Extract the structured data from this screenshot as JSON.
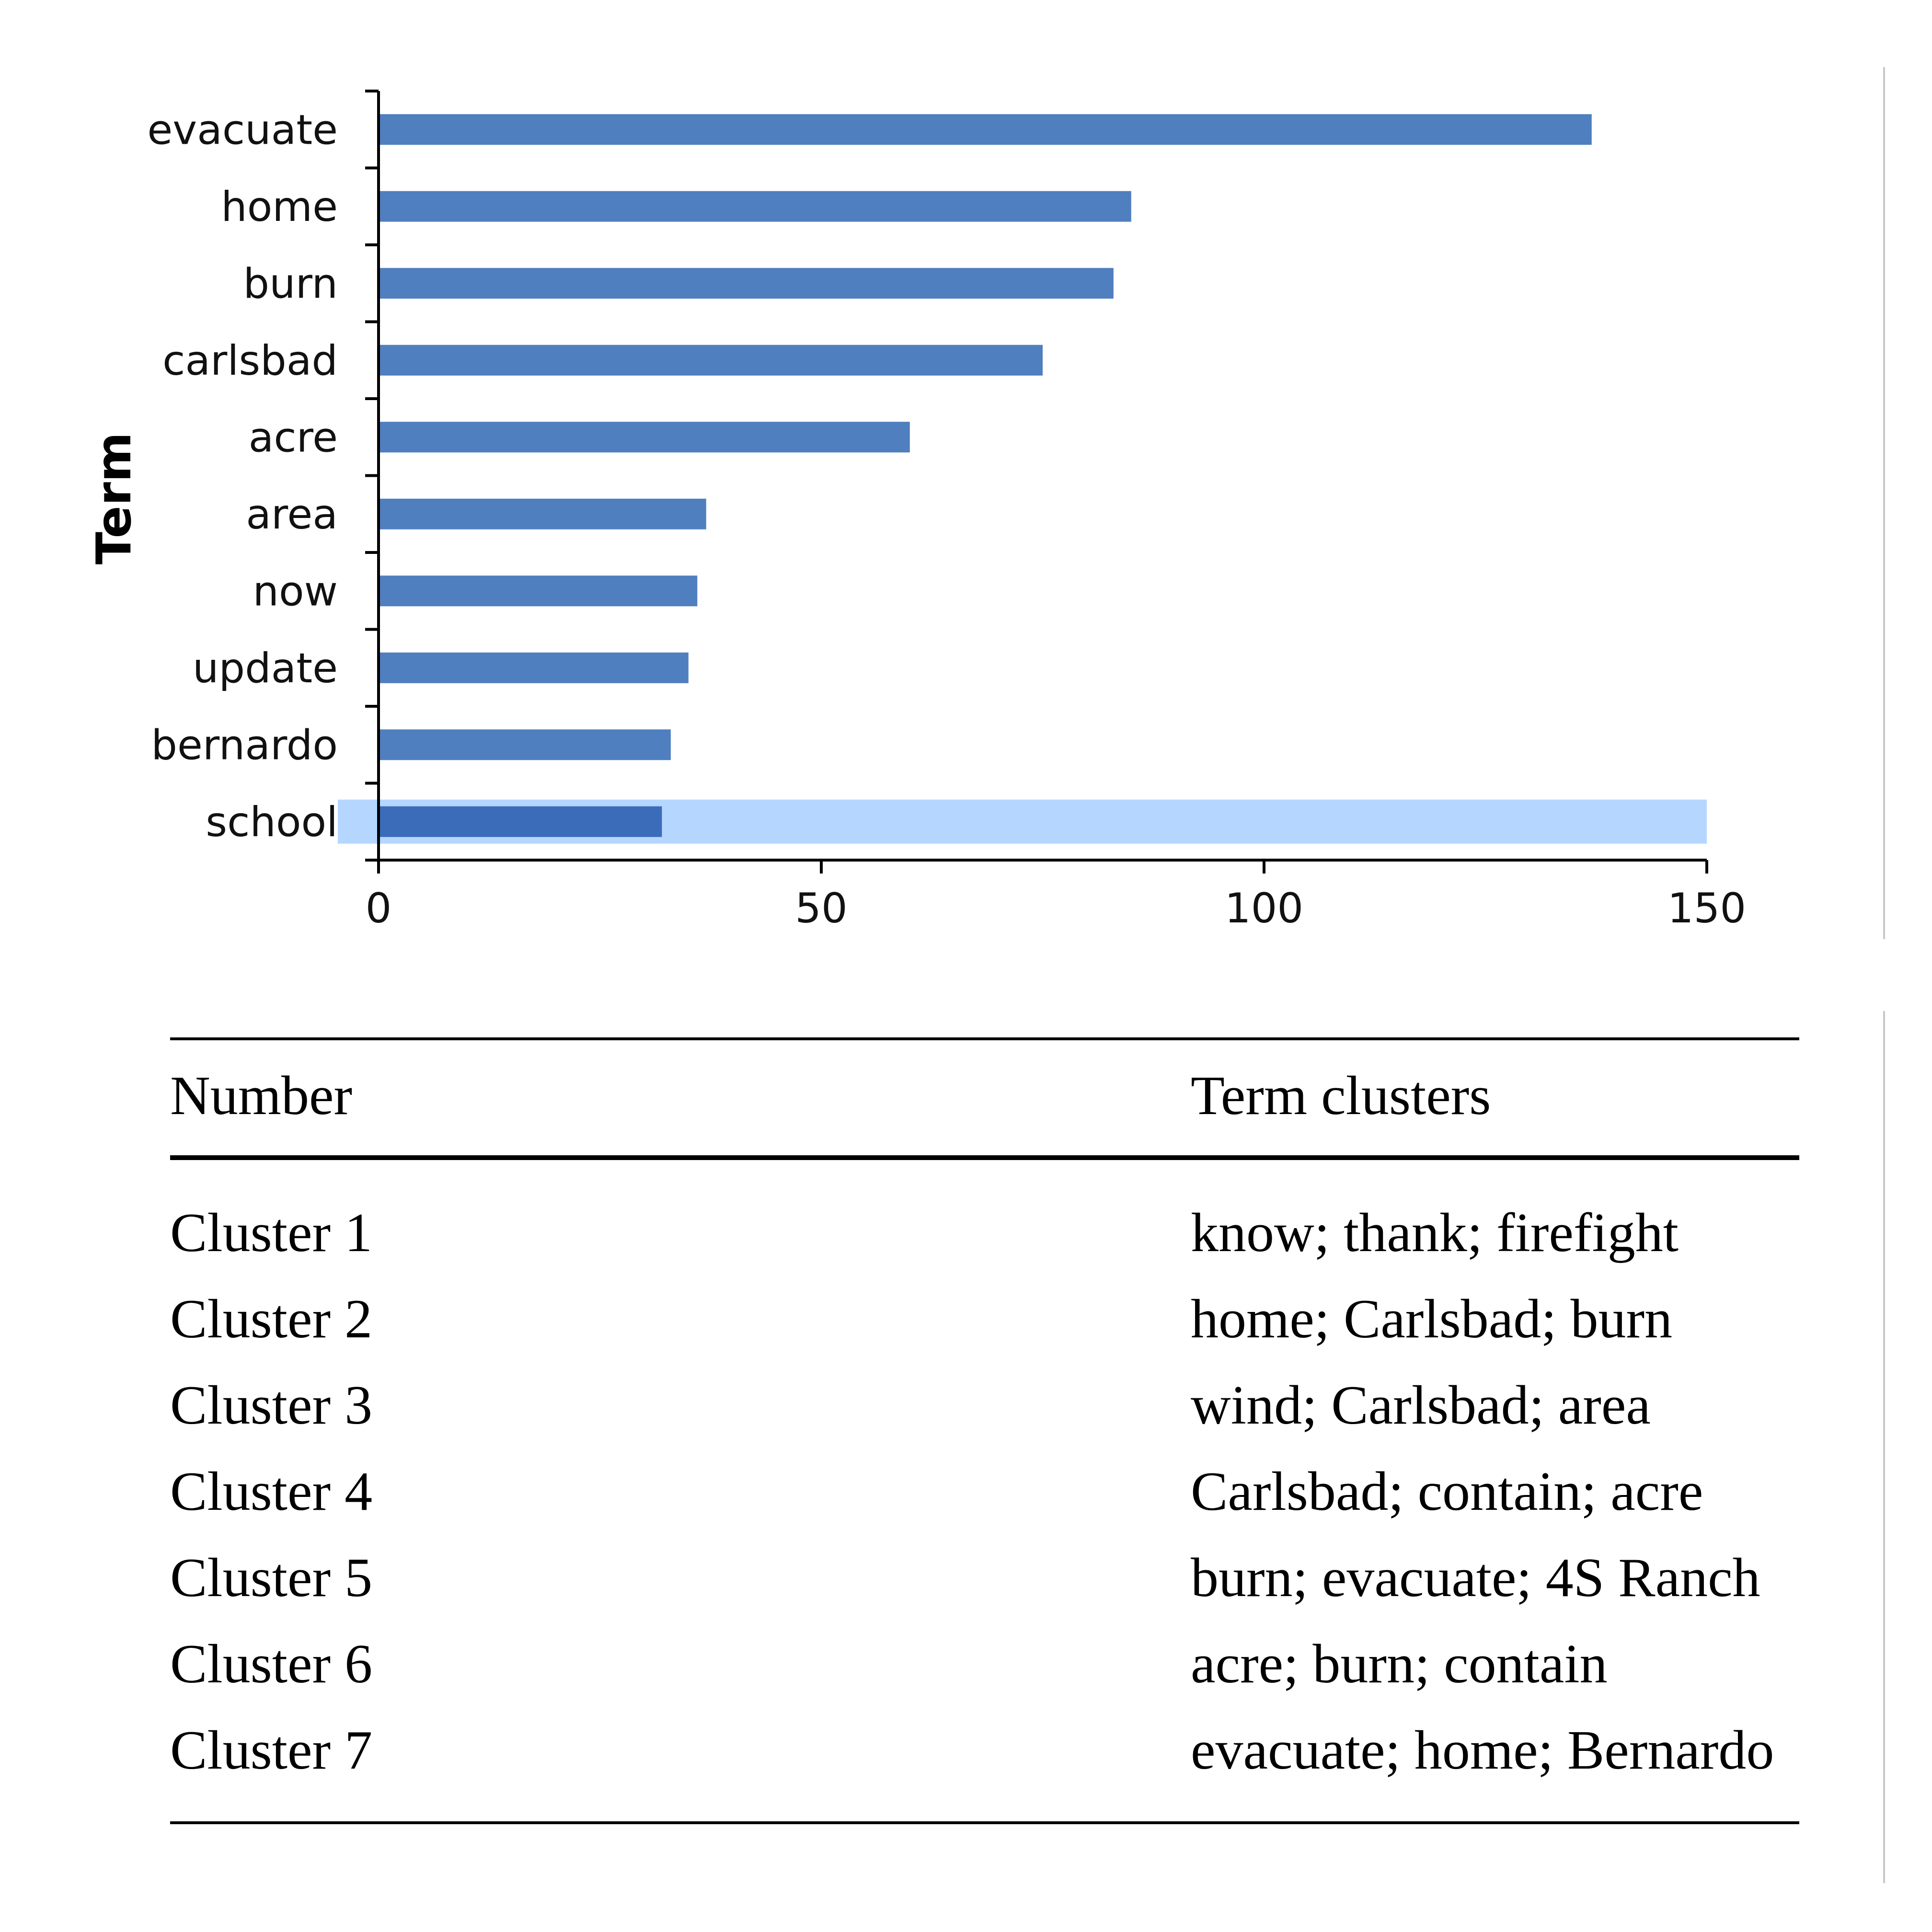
{
  "colors": {
    "bar": "#4f7fbe",
    "highlighted_bar": "#3a6cb9",
    "highlight_band": "#b5d6ff",
    "axis": "#000000"
  },
  "chart_data": {
    "type": "bar",
    "orientation": "horizontal",
    "ylabel": "Term",
    "xlabel": "",
    "title": "",
    "categories": [
      "evacuate",
      "home",
      "burn",
      "carlsbad",
      "acre",
      "area",
      "now",
      "update",
      "bernardo",
      "school"
    ],
    "values": [
      137,
      85,
      83,
      75,
      60,
      37,
      36,
      35,
      33,
      32
    ],
    "xlim": [
      0,
      150
    ],
    "xticks": [
      0,
      50,
      100,
      150
    ],
    "highlighted_category": "school",
    "grid": false,
    "legend": "none"
  },
  "table": {
    "headers": {
      "number": "Number",
      "terms": "Term clusters"
    },
    "rows": [
      {
        "number": "Cluster 1",
        "terms": "know; thank; firefight"
      },
      {
        "number": "Cluster 2",
        "terms": "home; Carlsbad; burn"
      },
      {
        "number": "Cluster 3",
        "terms": "wind; Carlsbad; area"
      },
      {
        "number": "Cluster 4",
        "terms": "Carlsbad; contain; acre"
      },
      {
        "number": "Cluster 5",
        "terms": "burn; evacuate; 4S Ranch"
      },
      {
        "number": "Cluster 6",
        "terms": "acre; burn; contain"
      },
      {
        "number": "Cluster 7",
        "terms": "evacuate; home; Bernardo"
      }
    ]
  }
}
